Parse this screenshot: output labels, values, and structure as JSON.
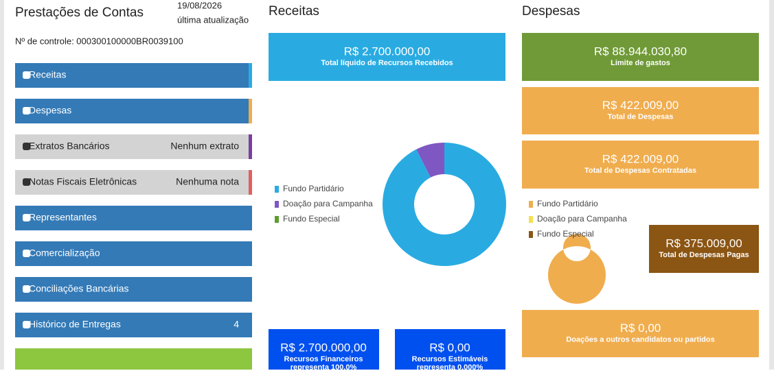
{
  "header": {
    "title": "Prestações de Contas",
    "date": "19/08/2026",
    "date_label": "última atualização",
    "control": "Nº de controle: 000300100000BR0039100"
  },
  "menu": [
    {
      "label": "Receitas"
    },
    {
      "label": "Despesas"
    },
    {
      "label": "Extratos Bancários",
      "status": "Nenhum extrato"
    },
    {
      "label": "Notas Fiscais Eletrônicas",
      "status": "Nenhuma nota"
    },
    {
      "label": "Representantes"
    },
    {
      "label": "Comercialização"
    },
    {
      "label": "Conciliações Bancárias"
    },
    {
      "label": "Histórico de Entregas",
      "status": "4"
    }
  ],
  "receitas": {
    "title": "Receitas",
    "summary": {
      "value": "R$ 2.700.000,00",
      "label": "Total líquido de Recursos Recebidos"
    },
    "chart": {
      "type": "pie",
      "series": [
        {
          "name": "Fundo Partidário",
          "color": "#29abe2",
          "value": 92.5
        },
        {
          "name": "Doação para Campanha",
          "color": "#7e57c2",
          "value": 7.5
        },
        {
          "name": "Fundo Especial",
          "color": "#5c9e2e",
          "value": 0
        }
      ]
    },
    "cards": [
      {
        "value": "R$ 2.700.000,00",
        "label": "Recursos Financeiros",
        "note": "representa 100,0%"
      },
      {
        "value": "R$ 0,00",
        "label": "Recursos Estimáveis",
        "note": "representa 0,000%"
      }
    ]
  },
  "despesas": {
    "title": "Despesas",
    "boxes": [
      {
        "value": "R$ 88.944.030,80",
        "label": "Limite de gastos"
      },
      {
        "value": "R$ 422.009,00",
        "label": "Total de Despesas"
      },
      {
        "value": "R$ 422.009,00",
        "label": "Total de Despesas Contratadas"
      },
      {
        "value": "R$ 375.009,00",
        "label": "Total de Despesas Pagas"
      },
      {
        "value": "R$ 0,00",
        "label": "Doações a outros candidatos ou partidos"
      }
    ],
    "chart": {
      "type": "pie",
      "series": [
        {
          "name": "Fundo Partidário",
          "color": "#f0ad4e",
          "value": 100
        },
        {
          "name": "Doação para Campanha",
          "color": "#f5e050",
          "value": 0
        },
        {
          "name": "Fundo Especial",
          "color": "#8b5513",
          "value": 0
        }
      ]
    }
  }
}
